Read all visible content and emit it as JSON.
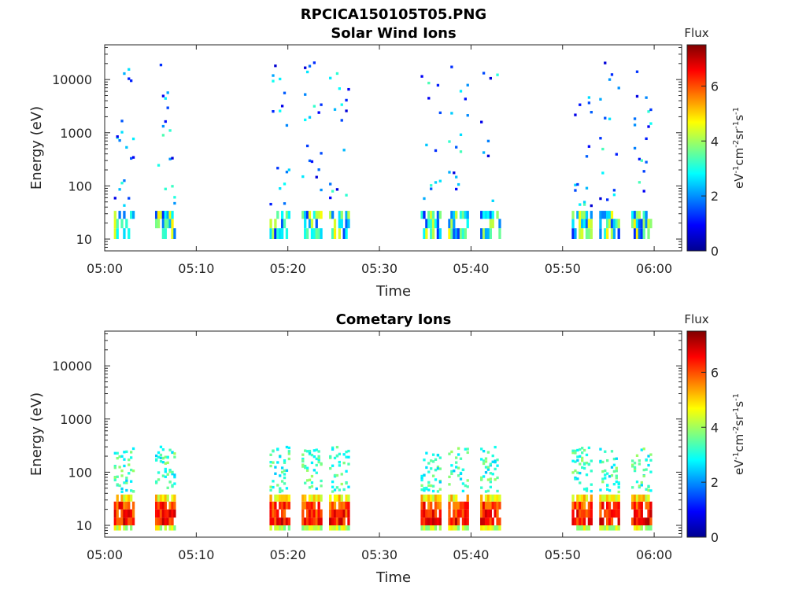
{
  "figure_title": "RPCICA150105T05.PNG",
  "chart_data": [
    {
      "type": "heatmap",
      "title": "Solar Wind Ions",
      "xlabel": "Time",
      "ylabel": "Energy (eV)",
      "y_scale": "log",
      "ylim": [
        6,
        45000
      ],
      "xlim": [
        "05:00",
        "06:03"
      ],
      "x_ticks": [
        "05:00",
        "05:10",
        "05:20",
        "05:30",
        "05:40",
        "05:50",
        "06:00"
      ],
      "y_ticks": [
        "10",
        "100",
        "1000",
        "10000"
      ],
      "colorbar": {
        "title": "Flux",
        "label": "eV-1cm-2sr-1s-1",
        "range": [
          0,
          7.5
        ],
        "ticks": [
          "0",
          "2",
          "4",
          "6"
        ],
        "colormap": "jet"
      },
      "bursts_start_minutes": [
        1,
        5.5,
        18,
        21.5,
        24.5,
        34.5,
        37.5,
        41,
        51,
        54,
        57.5
      ],
      "typical_flux_low_energy": 4
    },
    {
      "type": "heatmap",
      "title": "Cometary Ions",
      "xlabel": "Time",
      "ylabel": "Energy (eV)",
      "y_scale": "log",
      "ylim": [
        6,
        45000
      ],
      "xlim": [
        "05:00",
        "06:03"
      ],
      "x_ticks": [
        "05:00",
        "05:10",
        "05:20",
        "05:30",
        "05:40",
        "05:50",
        "06:00"
      ],
      "y_ticks": [
        "10",
        "100",
        "1000",
        "10000"
      ],
      "colorbar": {
        "title": "Flux",
        "label": "eV-1cm-2sr-1s-1",
        "range": [
          0,
          7.5
        ],
        "ticks": [
          "0",
          "2",
          "4",
          "6"
        ],
        "colormap": "jet"
      },
      "bursts_start_minutes": [
        1,
        5.5,
        18,
        21.5,
        24.5,
        34.5,
        37.5,
        41,
        51,
        54,
        57.5
      ],
      "typical_flux_core": 7
    }
  ]
}
